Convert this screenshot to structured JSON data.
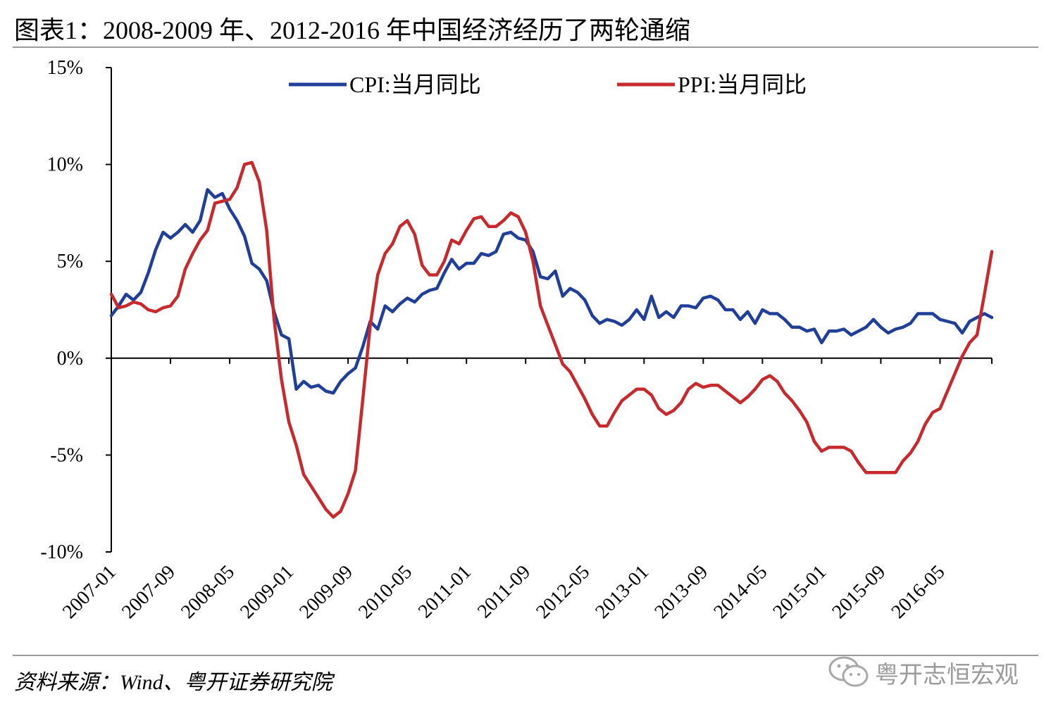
{
  "header": {
    "title": "图表1：2008-2009 年、2012-2016 年中国经济经历了两轮通缩"
  },
  "footer": {
    "source": "资料来源：Wind、粤开证券研究院"
  },
  "watermark": {
    "text": "粤开志恒宏观",
    "icon": "wechat-icon"
  },
  "colors": {
    "cpi": "#1f3f99",
    "ppi": "#c7292c"
  },
  "chart_data": {
    "type": "line",
    "title": "",
    "xlabel": "",
    "ylabel": "",
    "ylim": [
      -10,
      15
    ],
    "yticks": [
      -10,
      -5,
      0,
      5,
      10,
      15
    ],
    "ytick_labels": [
      "-10%",
      "-5%",
      "0%",
      "5%",
      "10%",
      "15%"
    ],
    "xtick_labels": [
      "2007-01",
      "2007-09",
      "2008-05",
      "2009-01",
      "2009-09",
      "2010-05",
      "2011-01",
      "2011-09",
      "2012-05",
      "2013-01",
      "2013-09",
      "2014-05",
      "2015-01",
      "2015-09",
      "2016-05"
    ],
    "legend_position": "top",
    "grid": false,
    "x_start": "2007-01",
    "x_end": "2016-12",
    "series": [
      {
        "name": "CPI:当月同比",
        "color": "#1f3f99",
        "values": [
          2.2,
          2.7,
          3.3,
          3.0,
          3.4,
          4.4,
          5.6,
          6.5,
          6.2,
          6.5,
          6.9,
          6.5,
          7.1,
          8.7,
          8.3,
          8.5,
          7.7,
          7.1,
          6.3,
          4.9,
          4.6,
          4.0,
          2.4,
          1.2,
          1.0,
          -1.6,
          -1.2,
          -1.5,
          -1.4,
          -1.7,
          -1.8,
          -1.2,
          -0.8,
          -0.5,
          0.6,
          1.9,
          1.5,
          2.7,
          2.4,
          2.8,
          3.1,
          2.9,
          3.3,
          3.5,
          3.6,
          4.4,
          5.1,
          4.6,
          4.9,
          4.9,
          5.4,
          5.3,
          5.5,
          6.4,
          6.5,
          6.2,
          6.1,
          5.5,
          4.2,
          4.1,
          4.5,
          3.2,
          3.6,
          3.4,
          3.0,
          2.2,
          1.8,
          2.0,
          1.9,
          1.7,
          2.0,
          2.5,
          2.0,
          3.2,
          2.1,
          2.4,
          2.1,
          2.7,
          2.7,
          2.6,
          3.1,
          3.2,
          3.0,
          2.5,
          2.5,
          2.0,
          2.4,
          1.8,
          2.5,
          2.3,
          2.3,
          2.0,
          1.6,
          1.6,
          1.4,
          1.5,
          0.8,
          1.4,
          1.4,
          1.5,
          1.2,
          1.4,
          1.6,
          2.0,
          1.6,
          1.3,
          1.5,
          1.6,
          1.8,
          2.3,
          2.3,
          2.3,
          2.0,
          1.9,
          1.8,
          1.3,
          1.9,
          2.1,
          2.3,
          2.1
        ],
        "values_label": "%"
      },
      {
        "name": "PPI:当月同比",
        "color": "#c7292c",
        "values": [
          3.3,
          2.6,
          2.7,
          2.9,
          2.8,
          2.5,
          2.4,
          2.6,
          2.7,
          3.2,
          4.6,
          5.4,
          6.1,
          6.6,
          8.0,
          8.1,
          8.2,
          8.8,
          10.0,
          10.1,
          9.1,
          6.6,
          2.0,
          -1.1,
          -3.3,
          -4.5,
          -6.0,
          -6.6,
          -7.2,
          -7.8,
          -8.2,
          -7.9,
          -7.0,
          -5.8,
          -2.1,
          1.7,
          4.3,
          5.4,
          5.9,
          6.8,
          7.1,
          6.4,
          4.8,
          4.3,
          4.3,
          5.0,
          6.1,
          5.9,
          6.6,
          7.2,
          7.3,
          6.8,
          6.8,
          7.1,
          7.5,
          7.3,
          6.5,
          5.0,
          2.7,
          1.7,
          0.7,
          -0.3,
          -0.7,
          -1.4,
          -2.1,
          -2.9,
          -3.5,
          -3.5,
          -2.8,
          -2.2,
          -1.9,
          -1.6,
          -1.6,
          -1.9,
          -2.6,
          -2.9,
          -2.7,
          -2.3,
          -1.6,
          -1.3,
          -1.5,
          -1.4,
          -1.4,
          -1.7,
          -2.0,
          -2.3,
          -2.0,
          -1.6,
          -1.1,
          -0.9,
          -1.2,
          -1.8,
          -2.2,
          -2.7,
          -3.3,
          -4.3,
          -4.8,
          -4.6,
          -4.6,
          -4.6,
          -4.8,
          -5.4,
          -5.9,
          -5.9,
          -5.9,
          -5.9,
          -5.9,
          -5.3,
          -4.9,
          -4.3,
          -3.4,
          -2.8,
          -2.6,
          -1.7,
          -0.8,
          0.1,
          0.8,
          1.2,
          3.3,
          5.5
        ],
        "values_label": "%"
      }
    ]
  }
}
